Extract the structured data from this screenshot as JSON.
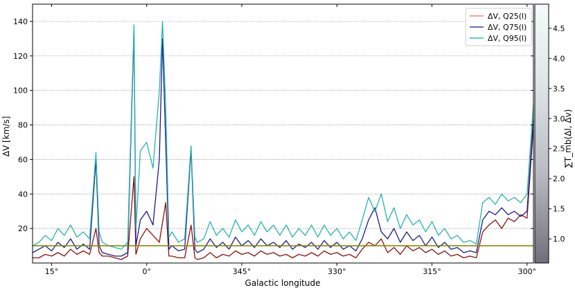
{
  "chart_data": {
    "type": "line",
    "xlabel": "Galactic longitude",
    "ylabel": "ΔV [km/s]",
    "xlim": [
      18,
      299
    ],
    "ylim": [
      0,
      150
    ],
    "x_direction": "decreasing",
    "grid": {
      "horizontal": true,
      "vertical": false
    },
    "x_ticks": [
      {
        "value": 15,
        "label": "15°"
      },
      {
        "value": 0,
        "label": "0°"
      },
      {
        "value": 345,
        "label": "345°"
      },
      {
        "value": 330,
        "label": "330°"
      },
      {
        "value": 315,
        "label": "315°"
      },
      {
        "value": 300,
        "label": "300°"
      }
    ],
    "y_ticks": [
      20,
      40,
      60,
      80,
      100,
      120,
      140
    ],
    "reference_line": {
      "y": 10,
      "color": "#8a8a00"
    },
    "legend": {
      "placement": "top-right",
      "entries": [
        {
          "label": "ΔV, Q25(l)",
          "color": "#f08080"
        },
        {
          "label": "ΔV, Q75(l)",
          "color": "#3a3aa0"
        },
        {
          "label": "ΔV, Q95(l)",
          "color": "#30b8b0"
        }
      ]
    },
    "colorbar": {
      "label": "∑T_mb(Δl, Δv)",
      "range": [
        0.6,
        4.9
      ],
      "ticks": [
        1.0,
        1.5,
        2.0,
        2.5,
        3.0,
        3.5,
        4.0,
        4.5
      ]
    },
    "series": [
      {
        "name": "ΔV, Q25(l)",
        "color": "#8b1010",
        "points": [
          [
            18,
            3
          ],
          [
            17,
            3
          ],
          [
            16,
            5
          ],
          [
            15,
            4
          ],
          [
            14,
            6
          ],
          [
            13,
            4
          ],
          [
            12,
            8
          ],
          [
            11,
            5
          ],
          [
            10,
            7
          ],
          [
            9,
            5
          ],
          [
            8,
            20
          ],
          [
            7.5,
            6
          ],
          [
            7,
            4
          ],
          [
            6,
            4
          ],
          [
            5,
            3
          ],
          [
            4,
            2
          ],
          [
            3,
            4
          ],
          [
            2,
            50
          ],
          [
            1.7,
            5
          ],
          [
            1,
            14
          ],
          [
            0,
            20
          ],
          [
            -1,
            16
          ],
          [
            -2,
            12
          ],
          [
            -3,
            35
          ],
          [
            -3.5,
            4
          ],
          [
            -4,
            4
          ],
          [
            -5,
            3
          ],
          [
            -6,
            3
          ],
          [
            -7,
            22
          ],
          [
            -7.6,
            3
          ],
          [
            -8,
            2
          ],
          [
            -9,
            3
          ],
          [
            -10,
            6
          ],
          [
            -11,
            3
          ],
          [
            -12,
            5
          ],
          [
            -13,
            4
          ],
          [
            -14,
            7
          ],
          [
            -15,
            5
          ],
          [
            -16,
            6
          ],
          [
            -17,
            4
          ],
          [
            -18,
            7
          ],
          [
            -19,
            5
          ],
          [
            -20,
            6
          ],
          [
            -21,
            4
          ],
          [
            -22,
            5
          ],
          [
            -23,
            3
          ],
          [
            -24,
            5
          ],
          [
            -25,
            4
          ],
          [
            -26,
            6
          ],
          [
            -27,
            4
          ],
          [
            -28,
            7
          ],
          [
            -29,
            5
          ],
          [
            -30,
            6
          ],
          [
            -31,
            4
          ],
          [
            -32,
            5
          ],
          [
            -33,
            3
          ],
          [
            -34,
            8
          ],
          [
            -35,
            12
          ],
          [
            -36,
            10
          ],
          [
            -37,
            14
          ],
          [
            -38,
            6
          ],
          [
            -39,
            9
          ],
          [
            -40,
            5
          ],
          [
            -41,
            10
          ],
          [
            -42,
            7
          ],
          [
            -43,
            9
          ],
          [
            -44,
            6
          ],
          [
            -45,
            8
          ],
          [
            -46,
            5
          ],
          [
            -47,
            7
          ],
          [
            -48,
            4
          ],
          [
            -49,
            5
          ],
          [
            -50,
            3
          ],
          [
            -51,
            4
          ],
          [
            -52,
            3
          ],
          [
            -53,
            18
          ],
          [
            -54,
            22
          ],
          [
            -55,
            25
          ],
          [
            -56,
            20
          ],
          [
            -57,
            26
          ],
          [
            -58,
            24
          ],
          [
            -59,
            28
          ],
          [
            -60,
            26
          ],
          [
            -61,
            80
          ]
        ]
      },
      {
        "name": "ΔV, Q75(l)",
        "color": "#1a1a8c",
        "points": [
          [
            18,
            6
          ],
          [
            17,
            8
          ],
          [
            16,
            10
          ],
          [
            15,
            7
          ],
          [
            14,
            12
          ],
          [
            13,
            9
          ],
          [
            12,
            14
          ],
          [
            11,
            8
          ],
          [
            10,
            11
          ],
          [
            9,
            8
          ],
          [
            8,
            60
          ],
          [
            7.5,
            10
          ],
          [
            7,
            6
          ],
          [
            6,
            5
          ],
          [
            5,
            4
          ],
          [
            4,
            4
          ],
          [
            3,
            6
          ],
          [
            2,
            135
          ],
          [
            1.7,
            10
          ],
          [
            1,
            25
          ],
          [
            0,
            30
          ],
          [
            -1,
            22
          ],
          [
            -2,
            60
          ],
          [
            -2.5,
            130
          ],
          [
            -3,
            70
          ],
          [
            -3.5,
            8
          ],
          [
            -4,
            10
          ],
          [
            -5,
            7
          ],
          [
            -6,
            8
          ],
          [
            -7,
            66
          ],
          [
            -7.6,
            8
          ],
          [
            -8,
            6
          ],
          [
            -9,
            8
          ],
          [
            -10,
            14
          ],
          [
            -11,
            9
          ],
          [
            -12,
            12
          ],
          [
            -13,
            8
          ],
          [
            -14,
            15
          ],
          [
            -15,
            10
          ],
          [
            -16,
            13
          ],
          [
            -17,
            9
          ],
          [
            -18,
            14
          ],
          [
            -19,
            10
          ],
          [
            -20,
            12
          ],
          [
            -21,
            9
          ],
          [
            -22,
            13
          ],
          [
            -23,
            8
          ],
          [
            -24,
            11
          ],
          [
            -25,
            9
          ],
          [
            -26,
            12
          ],
          [
            -27,
            8
          ],
          [
            -28,
            13
          ],
          [
            -29,
            9
          ],
          [
            -30,
            12
          ],
          [
            -31,
            8
          ],
          [
            -32,
            10
          ],
          [
            -33,
            7
          ],
          [
            -34,
            14
          ],
          [
            -35,
            25
          ],
          [
            -36,
            32
          ],
          [
            -37,
            18
          ],
          [
            -38,
            14
          ],
          [
            -39,
            20
          ],
          [
            -40,
            12
          ],
          [
            -41,
            18
          ],
          [
            -42,
            13
          ],
          [
            -43,
            16
          ],
          [
            -44,
            10
          ],
          [
            -45,
            15
          ],
          [
            -46,
            9
          ],
          [
            -47,
            12
          ],
          [
            -48,
            8
          ],
          [
            -49,
            9
          ],
          [
            -50,
            6
          ],
          [
            -51,
            7
          ],
          [
            -52,
            6
          ],
          [
            -53,
            25
          ],
          [
            -54,
            30
          ],
          [
            -55,
            28
          ],
          [
            -56,
            32
          ],
          [
            -57,
            28
          ],
          [
            -58,
            30
          ],
          [
            -59,
            27
          ],
          [
            -60,
            30
          ],
          [
            -61,
            84
          ]
        ]
      },
      {
        "name": "ΔV, Q95(l)",
        "color": "#26b3aa",
        "points": [
          [
            18,
            10
          ],
          [
            17,
            12
          ],
          [
            16,
            16
          ],
          [
            15,
            13
          ],
          [
            14,
            20
          ],
          [
            13,
            16
          ],
          [
            12,
            22
          ],
          [
            11,
            15
          ],
          [
            10,
            18
          ],
          [
            9,
            14
          ],
          [
            8,
            64
          ],
          [
            7.5,
            18
          ],
          [
            7,
            12
          ],
          [
            6,
            10
          ],
          [
            5,
            9
          ],
          [
            4,
            8
          ],
          [
            3,
            12
          ],
          [
            2,
            138
          ],
          [
            1.7,
            20
          ],
          [
            1,
            65
          ],
          [
            0,
            70
          ],
          [
            -1,
            55
          ],
          [
            -2,
            100
          ],
          [
            -2.5,
            140
          ],
          [
            -3,
            90
          ],
          [
            -3.5,
            15
          ],
          [
            -4,
            18
          ],
          [
            -5,
            12
          ],
          [
            -6,
            14
          ],
          [
            -7,
            68
          ],
          [
            -7.6,
            15
          ],
          [
            -8,
            12
          ],
          [
            -9,
            14
          ],
          [
            -10,
            24
          ],
          [
            -11,
            16
          ],
          [
            -12,
            20
          ],
          [
            -13,
            15
          ],
          [
            -14,
            25
          ],
          [
            -15,
            18
          ],
          [
            -16,
            22
          ],
          [
            -17,
            16
          ],
          [
            -18,
            24
          ],
          [
            -19,
            18
          ],
          [
            -20,
            22
          ],
          [
            -21,
            16
          ],
          [
            -22,
            22
          ],
          [
            -23,
            15
          ],
          [
            -24,
            20
          ],
          [
            -25,
            16
          ],
          [
            -26,
            22
          ],
          [
            -27,
            15
          ],
          [
            -28,
            22
          ],
          [
            -29,
            16
          ],
          [
            -30,
            20
          ],
          [
            -31,
            14
          ],
          [
            -32,
            18
          ],
          [
            -33,
            13
          ],
          [
            -34,
            25
          ],
          [
            -35,
            38
          ],
          [
            -36,
            30
          ],
          [
            -37,
            40
          ],
          [
            -38,
            24
          ],
          [
            -39,
            32
          ],
          [
            -40,
            20
          ],
          [
            -41,
            28
          ],
          [
            -42,
            22
          ],
          [
            -43,
            25
          ],
          [
            -44,
            18
          ],
          [
            -45,
            24
          ],
          [
            -46,
            16
          ],
          [
            -47,
            20
          ],
          [
            -48,
            14
          ],
          [
            -49,
            16
          ],
          [
            -50,
            12
          ],
          [
            -51,
            13
          ],
          [
            -52,
            11
          ],
          [
            -53,
            35
          ],
          [
            -54,
            38
          ],
          [
            -55,
            34
          ],
          [
            -56,
            40
          ],
          [
            -57,
            36
          ],
          [
            -58,
            38
          ],
          [
            -59,
            35
          ],
          [
            -60,
            40
          ],
          [
            -61,
            92
          ]
        ]
      }
    ]
  }
}
